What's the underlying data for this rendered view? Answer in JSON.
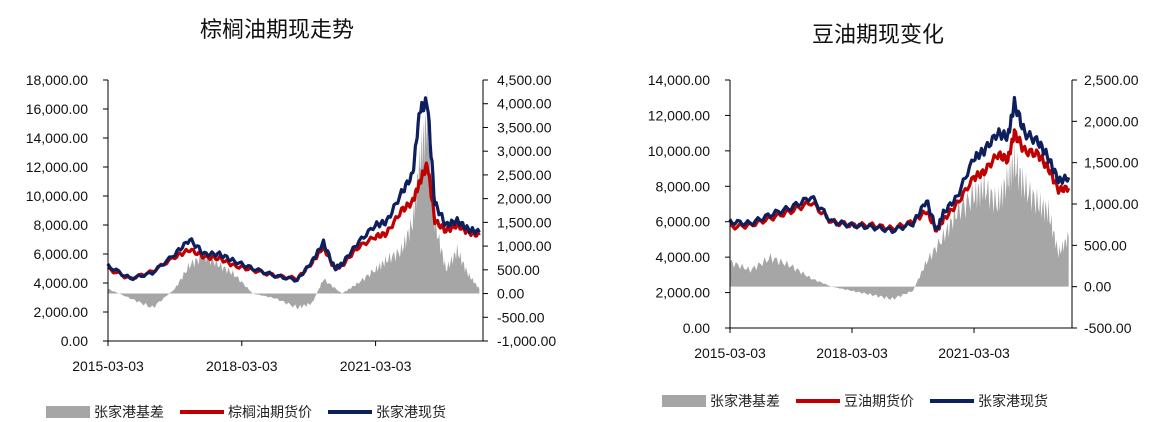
{
  "chart_data": [
    {
      "type": "line",
      "title": "棕榈油期现走势",
      "x_ticks": [
        "2015-03-03",
        "2018-03-03",
        "2021-03-03"
      ],
      "y_left": {
        "ticks": [
          "0.00",
          "2,000.00",
          "4,000.00",
          "6,000.00",
          "8,000.00",
          "10,000.00",
          "12,000.00",
          "14,000.00",
          "16,000.00",
          "18,000.00"
        ],
        "ylim": [
          0,
          18000
        ]
      },
      "y_right": {
        "ticks": [
          "-1,000.00",
          "-500.00",
          "0.00",
          "500.00",
          "1,000.00",
          "1,500.00",
          "2,000.00",
          "2,500.00",
          "3,000.00",
          "3,500.00",
          "4,000.00",
          "4,500.00"
        ],
        "ylim": [
          -1000,
          4500
        ]
      },
      "x_range": [
        "2015-03-03",
        "2023-07-31"
      ],
      "series": [
        {
          "name": "张家港基差",
          "kind": "area",
          "axis": "right",
          "color": "#a6a6a6",
          "x": [
            "2015-03",
            "2015-09",
            "2016-03",
            "2016-09",
            "2017-01",
            "2017-05",
            "2017-09",
            "2018-01",
            "2018-06",
            "2018-12",
            "2019-06",
            "2019-10",
            "2020-01",
            "2020-06",
            "2020-10",
            "2021-03",
            "2021-06",
            "2021-10",
            "2022-01",
            "2022-03",
            "2022-05",
            "2022-07",
            "2022-10",
            "2023-01",
            "2023-04",
            "2023-07"
          ],
          "values": [
            100,
            -100,
            -300,
            100,
            600,
            800,
            600,
            400,
            0,
            -100,
            -300,
            -200,
            300,
            0,
            200,
            500,
            700,
            900,
            1500,
            2800,
            3700,
            1500,
            500,
            900,
            400,
            100
          ]
        },
        {
          "name": "棕榈油期货价",
          "kind": "line",
          "axis": "left",
          "color": "#c00000",
          "x": [
            "2015-03",
            "2015-09",
            "2016-03",
            "2016-09",
            "2017-01",
            "2017-05",
            "2017-09",
            "2018-01",
            "2018-06",
            "2018-12",
            "2019-06",
            "2019-10",
            "2020-01",
            "2020-04",
            "2020-06",
            "2020-10",
            "2021-03",
            "2021-06",
            "2021-10",
            "2022-01",
            "2022-03",
            "2022-05",
            "2022-07",
            "2022-10",
            "2023-01",
            "2023-04",
            "2023-07"
          ],
          "values": [
            5000,
            4300,
            4800,
            5800,
            6300,
            5800,
            5700,
            5200,
            4900,
            4500,
            4300,
            5400,
            6500,
            5000,
            5200,
            6400,
            7200,
            7400,
            9000,
            9600,
            11000,
            12200,
            8300,
            7600,
            8000,
            7500,
            7300
          ]
        },
        {
          "name": "张家港现货",
          "kind": "line",
          "axis": "left",
          "color": "#0d1f5c",
          "x": [
            "2015-03",
            "2015-09",
            "2016-03",
            "2016-09",
            "2017-01",
            "2017-05",
            "2017-09",
            "2018-01",
            "2018-06",
            "2018-12",
            "2019-06",
            "2019-10",
            "2020-01",
            "2020-04",
            "2020-06",
            "2020-10",
            "2021-03",
            "2021-06",
            "2021-10",
            "2022-01",
            "2022-03",
            "2022-05",
            "2022-07",
            "2022-10",
            "2023-01",
            "2023-04",
            "2023-07"
          ],
          "values": [
            5200,
            4300,
            4700,
            6000,
            7000,
            6000,
            6000,
            5500,
            5000,
            4500,
            4200,
            5500,
            6800,
            5000,
            5300,
            6700,
            8000,
            8200,
            10200,
            11500,
            16000,
            16500,
            9500,
            8000,
            8300,
            7700,
            7500
          ]
        }
      ],
      "legend": [
        "张家港基差",
        "棕榈油期货价",
        "张家港现货"
      ],
      "legend_position": "bottom"
    },
    {
      "type": "line",
      "title": "豆油期现变化",
      "x_ticks": [
        "2015-03-03",
        "2018-03-03",
        "2021-03-03"
      ],
      "y_left": {
        "ticks": [
          "0.00",
          "2,000.00",
          "4,000.00",
          "6,000.00",
          "8,000.00",
          "10,000.00",
          "12,000.00",
          "14,000.00"
        ],
        "ylim": [
          0,
          14000
        ]
      },
      "y_right": {
        "ticks": [
          "-500.00",
          "0.00",
          "500.00",
          "1,000.00",
          "1,500.00",
          "2,000.00",
          "2,500.00"
        ],
        "ylim": [
          -500,
          2500
        ]
      },
      "x_range": [
        "2015-03-03",
        "2023-07-31"
      ],
      "series": [
        {
          "name": "张家港基差",
          "kind": "area",
          "axis": "right",
          "color": "#a6a6a6",
          "x": [
            "2015-03",
            "2015-09",
            "2016-03",
            "2016-09",
            "2017-03",
            "2017-09",
            "2018-03",
            "2018-09",
            "2019-03",
            "2019-09",
            "2020-01",
            "2020-06",
            "2020-10",
            "2021-03",
            "2021-06",
            "2021-10",
            "2022-01",
            "2022-03",
            "2022-06",
            "2022-10",
            "2023-01",
            "2023-04",
            "2023-07"
          ],
          "values": [
            300,
            200,
            350,
            250,
            100,
            0,
            -50,
            -100,
            -150,
            -50,
            300,
            600,
            900,
            1100,
            1200,
            1000,
            1300,
            1500,
            1200,
            1000,
            900,
            400,
            600
          ]
        },
        {
          "name": "豆油期货价",
          "kind": "line",
          "axis": "left",
          "color": "#c00000",
          "x": [
            "2015-03",
            "2015-09",
            "2016-03",
            "2016-09",
            "2017-03",
            "2017-09",
            "2018-03",
            "2018-09",
            "2019-03",
            "2019-09",
            "2020-01",
            "2020-04",
            "2020-06",
            "2020-10",
            "2021-03",
            "2021-06",
            "2021-10",
            "2022-01",
            "2022-03",
            "2022-06",
            "2022-10",
            "2023-01",
            "2023-04",
            "2023-07"
          ],
          "values": [
            5700,
            5800,
            6200,
            6600,
            7100,
            6000,
            5800,
            5800,
            5600,
            6000,
            6600,
            5500,
            6100,
            7000,
            8500,
            8800,
            9800,
            9500,
            11000,
            10000,
            9800,
            9000,
            7800,
            7900
          ]
        },
        {
          "name": "张家港现货",
          "kind": "line",
          "axis": "left",
          "color": "#0d1f5c",
          "x": [
            "2015-03",
            "2015-09",
            "2016-03",
            "2016-09",
            "2017-03",
            "2017-09",
            "2018-03",
            "2018-09",
            "2019-03",
            "2019-09",
            "2020-01",
            "2020-04",
            "2020-06",
            "2020-10",
            "2021-03",
            "2021-06",
            "2021-10",
            "2022-01",
            "2022-03",
            "2022-06",
            "2022-10",
            "2023-01",
            "2023-04",
            "2023-07"
          ],
          "values": [
            6000,
            5900,
            6400,
            6800,
            7400,
            6000,
            5800,
            5700,
            5500,
            5900,
            7200,
            5500,
            6500,
            7400,
            9600,
            10000,
            11000,
            10800,
            12700,
            11000,
            10500,
            9600,
            8300,
            8500
          ]
        }
      ],
      "legend": [
        "张家港基差",
        "豆油期货价",
        "张家港现货"
      ],
      "legend_position": "bottom"
    }
  ]
}
